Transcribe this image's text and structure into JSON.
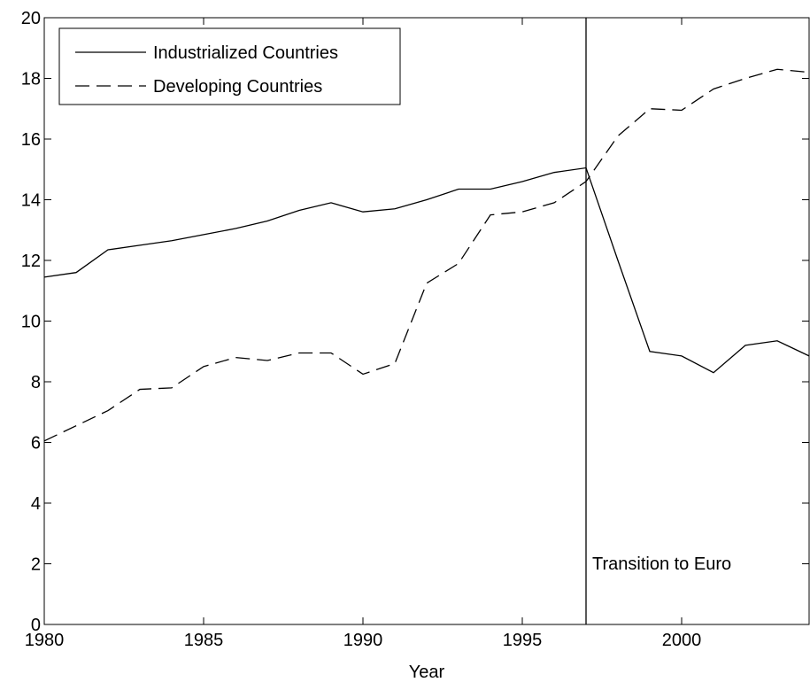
{
  "chart_data": {
    "type": "line",
    "xlabel": "Year",
    "x": [
      1980,
      1981,
      1982,
      1983,
      1984,
      1985,
      1986,
      1987,
      1988,
      1989,
      1990,
      1991,
      1992,
      1993,
      1994,
      1995,
      1996,
      1997,
      1998,
      1999,
      2000,
      2001,
      2002,
      2003,
      2004
    ],
    "series": [
      {
        "name": "Industrialized Countries",
        "color": "#000000",
        "dash": "solid",
        "values": [
          11.45,
          11.6,
          12.35,
          12.5,
          12.65,
          12.85,
          13.05,
          13.3,
          13.65,
          13.9,
          13.6,
          13.7,
          14.0,
          14.35,
          14.35,
          14.6,
          14.9,
          15.05,
          12.0,
          9.0,
          8.85,
          8.3,
          9.2,
          9.35,
          8.85
        ]
      },
      {
        "name": "Developing Countries",
        "color": "#000000",
        "dash": "dashed",
        "values": [
          6.05,
          6.55,
          7.05,
          7.75,
          7.8,
          8.5,
          8.8,
          8.7,
          8.95,
          8.95,
          8.25,
          8.6,
          11.25,
          11.9,
          13.5,
          13.6,
          13.9,
          14.6,
          16.1,
          17.0,
          16.95,
          17.65,
          18.0,
          18.3,
          18.2
        ]
      }
    ],
    "annotations": [
      {
        "text": "Transition to Euro",
        "x": 1997
      }
    ],
    "xlim": [
      1980,
      2004
    ],
    "xticks": [
      1980,
      1985,
      1990,
      1995,
      2000
    ],
    "ylim": [
      0,
      20
    ],
    "yticks": [
      0,
      2,
      4,
      6,
      8,
      10,
      12,
      14,
      16,
      18,
      20
    ],
    "legend": "upper left",
    "grid": false
  }
}
